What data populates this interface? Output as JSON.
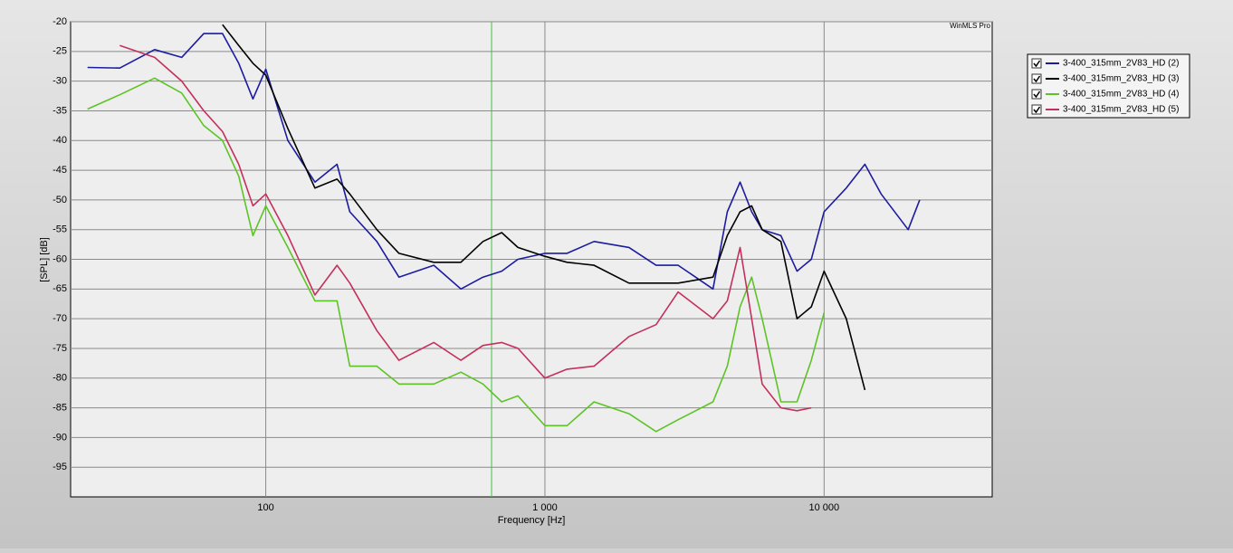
{
  "chart_data": {
    "type": "line",
    "title": "WinMLS Pro",
    "x_label": "Frequency [Hz]",
    "y_label": "[SPL] [dB]",
    "x": [
      23,
      30,
      40,
      50,
      60,
      70,
      80,
      90,
      100,
      120,
      150,
      180,
      200,
      250,
      300,
      400,
      500,
      600,
      700,
      800,
      1000,
      1200,
      1500,
      2000,
      2500,
      3000,
      4000,
      4500,
      5000,
      5500,
      6000,
      7000,
      8000,
      9000,
      10000,
      12000,
      14000,
      16000,
      20000,
      22000
    ],
    "series": [
      {
        "name": "3-400_315mm_2V83_HD (2)",
        "color": "#1c1ca0",
        "values": [
          -27.7,
          -27.8,
          -24.7,
          -26,
          -22,
          -22,
          -27,
          -33,
          -28,
          -40,
          -47,
          -44,
          -52,
          -57,
          -63,
          -61,
          -65,
          -63,
          -62,
          -60,
          -59,
          -59,
          -57,
          -58,
          -61,
          -61,
          -65,
          -52,
          -47,
          -52,
          -55,
          -56,
          -62,
          -60,
          -52,
          -48,
          -44,
          -49,
          -55,
          -50
        ]
      },
      {
        "name": "3-400_315mm_2V83_HD (3)",
        "color": "#000000",
        "values": [
          null,
          null,
          null,
          null,
          null,
          -20.5,
          -24,
          -27,
          -29,
          -38,
          -48,
          -46.5,
          -49,
          -55,
          -59,
          -60.5,
          -60.5,
          -57,
          -55.5,
          -58,
          -59.5,
          -60.5,
          -61,
          -64,
          -64,
          -64,
          -63,
          -56,
          -52,
          -51,
          -55,
          -57,
          -70,
          -68,
          -62,
          -70,
          -82,
          null,
          null,
          null
        ]
      },
      {
        "name": "3-400_315mm_2V83_HD (4)",
        "color": "#5cc424",
        "values": [
          -34.7,
          -32.3,
          -29.5,
          -32,
          -37.5,
          -40,
          -46,
          -56,
          -51,
          -58,
          -67,
          -67,
          -78,
          -78,
          -81,
          -81,
          -79,
          -81,
          -84,
          -83,
          -88,
          -88,
          -84,
          -86,
          -89,
          -87,
          -84,
          -78,
          -68,
          -63,
          -70,
          -84,
          -84,
          -77,
          -69,
          null,
          null,
          null,
          null,
          null
        ]
      },
      {
        "name": "3-400_315mm_2V83_HD (5)",
        "color": "#c4305c",
        "values": [
          null,
          -24,
          -26,
          -30,
          -35,
          -38.5,
          -44,
          -51,
          -49,
          -56,
          -66,
          -61,
          -64,
          -72,
          -77,
          -74,
          -77,
          -74.5,
          -74,
          -75,
          -80,
          -78.5,
          -78,
          -73,
          -71,
          -65.5,
          -70,
          -67,
          -58,
          -70,
          -81,
          -85,
          -85.5,
          -85,
          null,
          null,
          null,
          null,
          null,
          null
        ]
      }
    ],
    "log_x": true,
    "grid": true,
    "xlim": [
      20,
      40000
    ],
    "xticks": [
      100,
      {
        "value": 1000,
        "label": "1 000"
      },
      {
        "value": 10000,
        "label": "10 000"
      }
    ],
    "ylim": [
      -100,
      -20
    ],
    "yticks": [
      -20,
      -25,
      -30,
      -35,
      -40,
      -45,
      -50,
      -55,
      -60,
      -65,
      -70,
      -75,
      -80,
      -85,
      -90,
      -95
    ]
  }
}
